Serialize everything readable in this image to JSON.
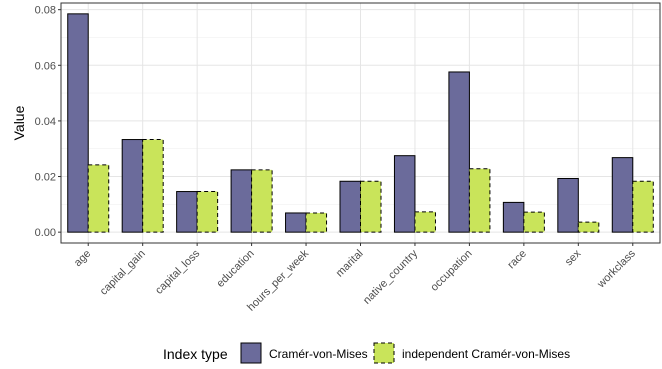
{
  "chart_data": {
    "type": "bar",
    "categories": [
      "age",
      "capital_gain",
      "capital_loss",
      "education",
      "hours_per_week",
      "marital",
      "native_country",
      "occupation",
      "race",
      "sex",
      "workclass"
    ],
    "series": [
      {
        "name": "Cramér-von-Mises",
        "values": [
          0.0785,
          0.0333,
          0.0146,
          0.0224,
          0.0069,
          0.0183,
          0.0275,
          0.0576,
          0.0107,
          0.0193,
          0.0268
        ],
        "color": "#6b6b9b",
        "border": "solid"
      },
      {
        "name": "independent Cramér-von-Mises",
        "values": [
          0.0242,
          0.0333,
          0.0146,
          0.0224,
          0.0069,
          0.0183,
          0.0073,
          0.0228,
          0.0072,
          0.0036,
          0.0183
        ],
        "color": "#c9e45a",
        "border": "dashed"
      }
    ],
    "ylabel": "Value",
    "xlabel": "",
    "ylim": [
      -0.0039,
      0.0824
    ],
    "yticks": [
      0.0,
      0.02,
      0.04,
      0.06,
      0.08
    ],
    "ytick_labels": [
      "0.00",
      "0.02",
      "0.04",
      "0.06",
      "0.08"
    ],
    "grid": true,
    "legend": {
      "title": "Index type",
      "position": "bottom"
    }
  }
}
